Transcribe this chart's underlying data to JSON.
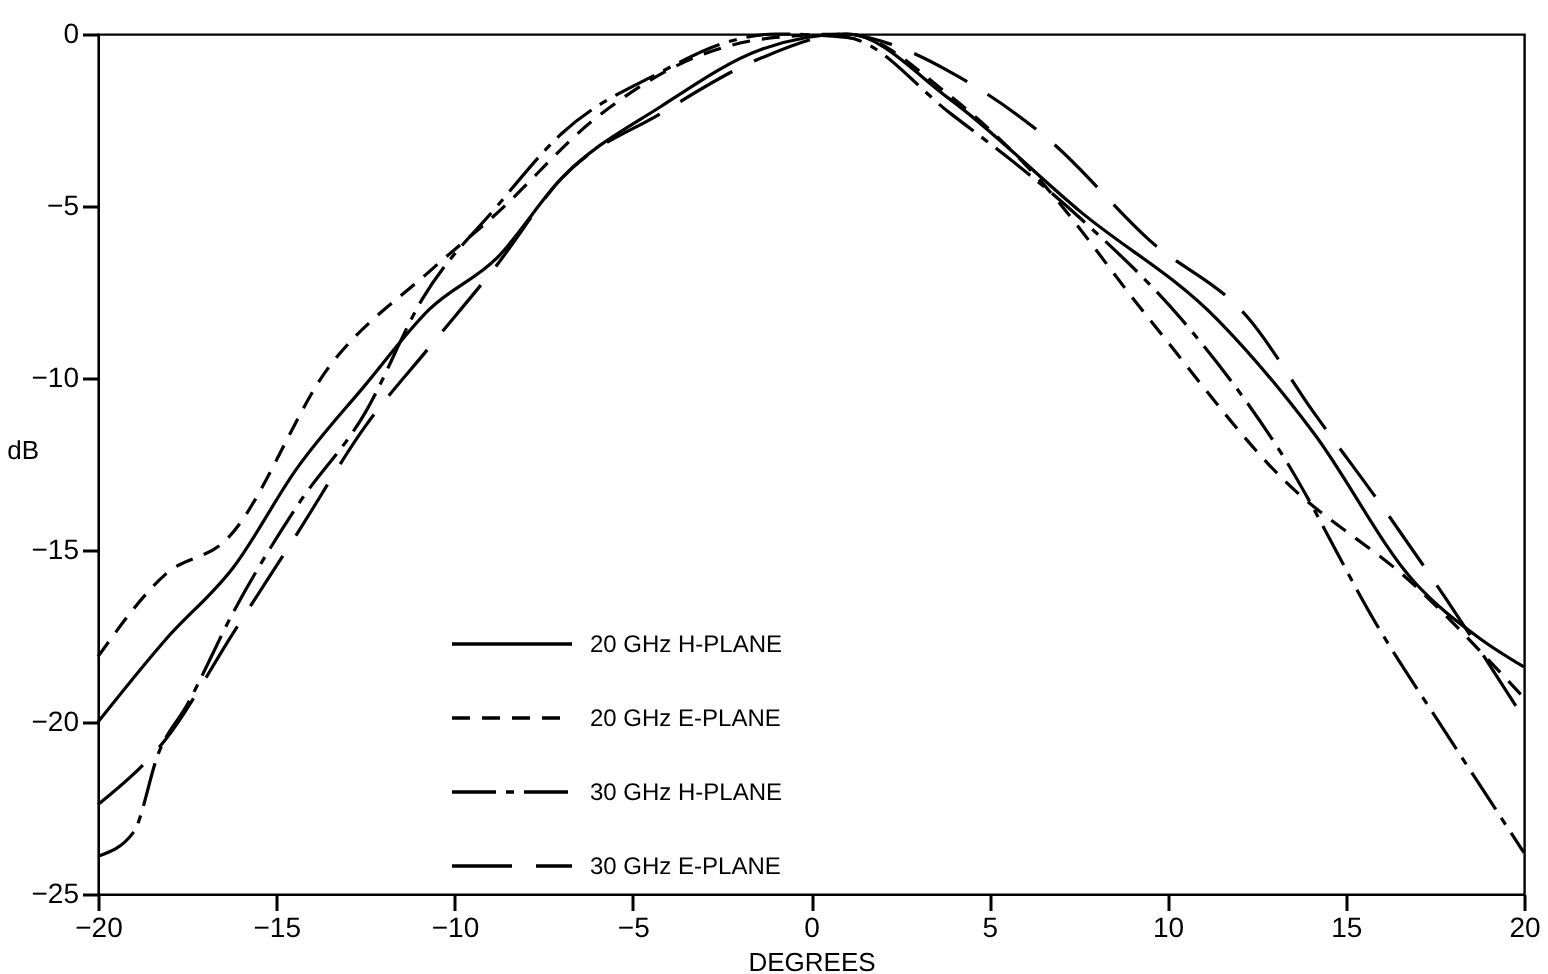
{
  "chart_data": {
    "type": "line",
    "xlabel": "DEGREES",
    "ylabel": "dB",
    "xlim": [
      -20,
      20
    ],
    "xticks": [
      -20,
      -15,
      -10,
      -5,
      0,
      5,
      10,
      15,
      20
    ],
    "ylim": [
      -25,
      0
    ],
    "yticks": [
      -25,
      -20,
      -15,
      -10,
      -5,
      0
    ],
    "grid": false,
    "legend": "bottom",
    "marker": "none",
    "series": [
      {
        "name": "20 GHz H-PLANE",
        "color": "#000000",
        "line_style": "solid",
        "x": [
          -20,
          -18.1,
          -16.2,
          -14.4,
          -12.5,
          -10.7,
          -8.8,
          -7.0,
          -4.2,
          -1.4,
          1,
          3.9,
          7.6,
          11.4,
          14.1,
          16.9,
          18.8,
          20
        ],
        "values": [
          -20.0,
          -17.6,
          -15.5,
          -12.6,
          -10.2,
          -8.0,
          -6.5,
          -4.2,
          -2.1,
          -0.45,
          0,
          -1.9,
          -5.2,
          -8.3,
          -11.6,
          -15.9,
          -17.6,
          -18.4
        ]
      },
      {
        "name": "20 GHz E-PLANE",
        "color": "#000000",
        "line_style": "dashed",
        "x": [
          -20,
          -18.1,
          -16.4,
          -13.5,
          -10.7,
          -8.8,
          -6.1,
          -3.3,
          -1,
          1,
          3.9,
          6.2,
          9.5,
          13.2,
          16.9,
          20
        ],
        "values": [
          -18.1,
          -15.7,
          -14.7,
          -9.65,
          -6.9,
          -5.2,
          -2.5,
          -0.7,
          -0.1,
          0,
          -1.8,
          -4.0,
          -8.3,
          -12.9,
          -16.0,
          -19.3
        ]
      },
      {
        "name": "30 GHz H-PLANE",
        "color": "#000000",
        "line_style": "dashdot",
        "x": [
          -20,
          -19.0,
          -18.3,
          -17.5,
          -16.2,
          -14.4,
          -12.5,
          -10.9,
          -8.8,
          -7.0,
          -4.2,
          -2.4,
          -1,
          1,
          3.9,
          7.6,
          10.4,
          13.2,
          16.0,
          17.8,
          20
        ],
        "values": [
          -23.9,
          -23.2,
          -20.9,
          -19.5,
          -16.8,
          -13.7,
          -11.0,
          -7.7,
          -5.0,
          -2.9,
          -1.1,
          -0.25,
          0,
          -0.1,
          -2.3,
          -5.4,
          -8.3,
          -12.2,
          -17.4,
          -20.3,
          -23.8
        ]
      },
      {
        "name": "30 GHz E-PLANE",
        "color": "#000000",
        "line_style": "longdash",
        "x": [
          -20,
          -18.1,
          -16.2,
          -14.4,
          -12.5,
          -10.7,
          -8.8,
          -7.0,
          -4.2,
          -1.4,
          1,
          2.1,
          3.9,
          6.7,
          9.5,
          12.3,
          14.1,
          16.0,
          17.8,
          20
        ],
        "values": [
          -22.4,
          -20.5,
          -17.4,
          -14.5,
          -11.4,
          -9.1,
          -6.7,
          -4.2,
          -2.3,
          -0.7,
          0,
          -0.25,
          -1.1,
          -3.1,
          -6.0,
          -8.3,
          -11.0,
          -13.7,
          -16.4,
          -19.9
        ]
      }
    ]
  }
}
